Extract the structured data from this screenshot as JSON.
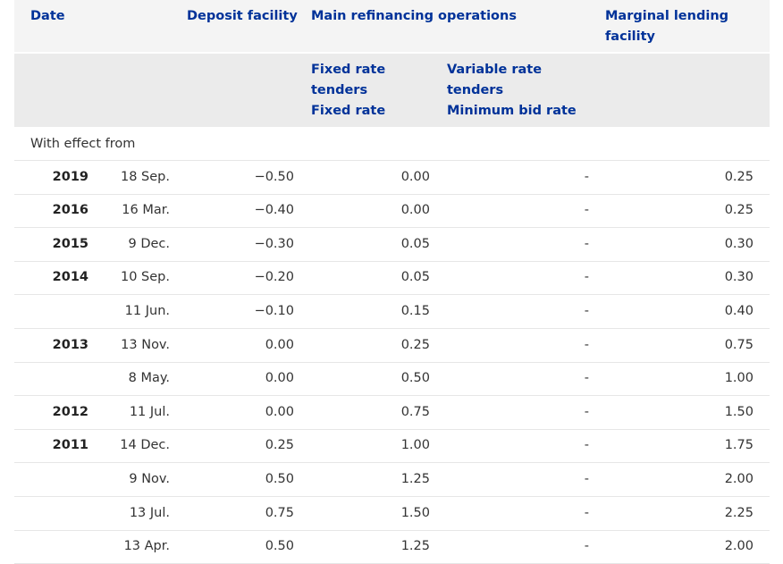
{
  "header": {
    "row1": [
      "Date",
      "Deposit facility",
      "Main refinancing operations",
      [
        "Marginal lending",
        "facility"
      ]
    ],
    "row2": [
      [
        "Fixed rate",
        "tenders",
        "Fixed rate"
      ],
      [
        "Variable rate",
        "tenders",
        "Minimum bid rate"
      ]
    ]
  },
  "section_label": "With effect from",
  "rows": [
    {
      "year": "2019",
      "day": "18 Sep.",
      "deposit": "−0.50",
      "fixed": "0.00",
      "variable": "-",
      "marginal": "0.25"
    },
    {
      "year": "2016",
      "day": "16 Mar.",
      "deposit": "−0.40",
      "fixed": "0.00",
      "variable": "-",
      "marginal": "0.25"
    },
    {
      "year": "2015",
      "day": "9 Dec.",
      "deposit": "−0.30",
      "fixed": "0.05",
      "variable": "-",
      "marginal": "0.30"
    },
    {
      "year": "2014",
      "day": "10 Sep.",
      "deposit": "−0.20",
      "fixed": "0.05",
      "variable": "-",
      "marginal": "0.30"
    },
    {
      "year": null,
      "day": "11 Jun.",
      "deposit": "−0.10",
      "fixed": "0.15",
      "variable": "-",
      "marginal": "0.40"
    },
    {
      "year": "2013",
      "day": "13 Nov.",
      "deposit": "0.00",
      "fixed": "0.25",
      "variable": "-",
      "marginal": "0.75"
    },
    {
      "year": null,
      "day": "8 May.",
      "deposit": "0.00",
      "fixed": "0.50",
      "variable": "-",
      "marginal": "1.00"
    },
    {
      "year": "2012",
      "day": "11 Jul.",
      "deposit": "0.00",
      "fixed": "0.75",
      "variable": "-",
      "marginal": "1.50"
    },
    {
      "year": "2011",
      "day": "14 Dec.",
      "deposit": "0.25",
      "fixed": "1.00",
      "variable": "-",
      "marginal": "1.75"
    },
    {
      "year": null,
      "day": "9 Nov.",
      "deposit": "0.50",
      "fixed": "1.25",
      "variable": "-",
      "marginal": "2.00"
    },
    {
      "year": null,
      "day": "13 Jul.",
      "deposit": "0.75",
      "fixed": "1.50",
      "variable": "-",
      "marginal": "2.25"
    },
    {
      "year": null,
      "day": "13 Apr.",
      "deposit": "0.50",
      "fixed": "1.25",
      "variable": "-",
      "marginal": "2.00"
    }
  ]
}
